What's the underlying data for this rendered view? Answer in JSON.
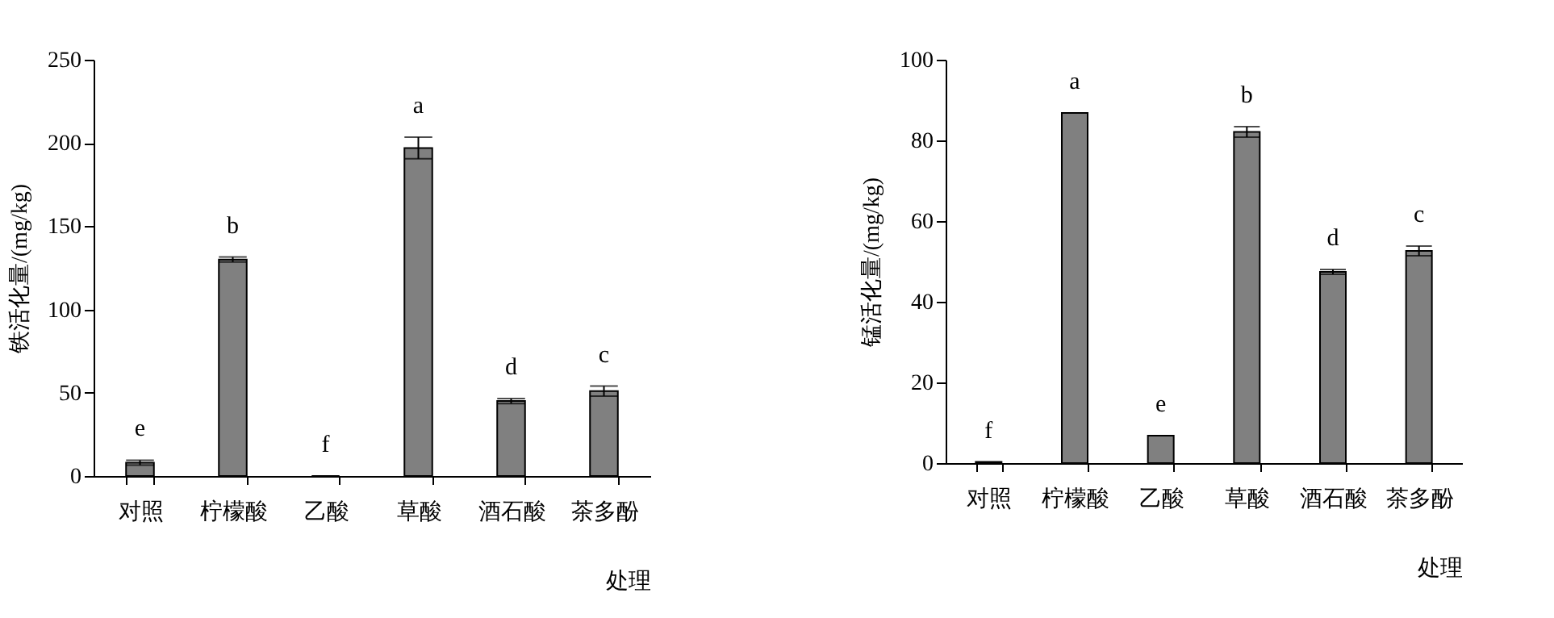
{
  "chart_data": [
    {
      "type": "bar",
      "categories": [
        "对照",
        "柠檬酸",
        "乙酸",
        "草酸",
        "酒石酸",
        "茶多酚"
      ],
      "values": [
        8,
        130,
        0,
        197,
        45,
        51
      ],
      "errors": [
        1.5,
        1.5,
        null,
        6.5,
        1.5,
        3
      ],
      "color": "#808080",
      "xlabel": "处理",
      "ylabel": "铁活化量/(mg/kg)",
      "ylim": [
        0,
        250
      ],
      "yticks": [
        0,
        50,
        100,
        150,
        200,
        250
      ],
      "grid": false,
      "annotations": [
        "e",
        "b",
        "f",
        "a",
        "d",
        "c"
      ]
    },
    {
      "type": "bar",
      "categories": [
        "对照",
        "柠檬酸",
        "乙酸",
        "草酸",
        "酒石酸",
        "茶多酚"
      ],
      "values": [
        0.3,
        86.8,
        6.8,
        82.1,
        47.4,
        52.6
      ],
      "errors": [
        null,
        null,
        null,
        1.3,
        0.6,
        1.2
      ],
      "color": "#808080",
      "xlabel": "处理",
      "ylabel": "锰活化量/(mg/kg)",
      "ylim": [
        0,
        100
      ],
      "yticks": [
        0,
        20,
        40,
        60,
        80,
        100
      ],
      "grid": false,
      "annotations": [
        "f",
        "a",
        "e",
        "b",
        "d",
        "c"
      ]
    }
  ]
}
